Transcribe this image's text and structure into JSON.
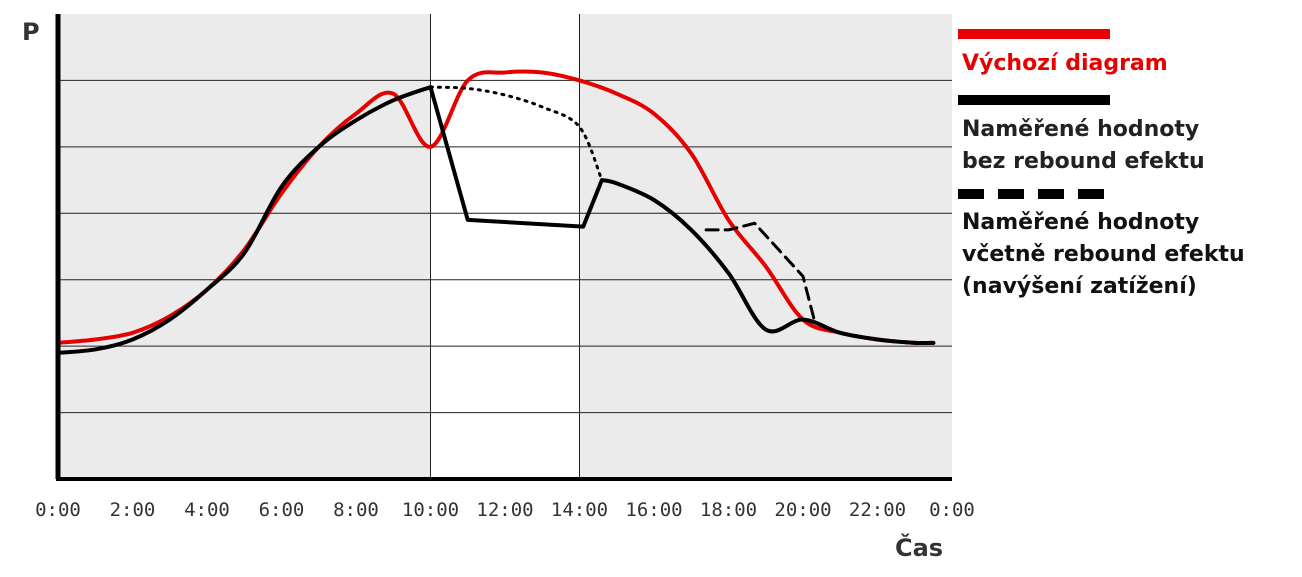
{
  "chart_data": {
    "type": "line",
    "ylabel": "P",
    "xlabel": "Čas",
    "x_ticks": [
      "0:00",
      "2:00",
      "4:00",
      "6:00",
      "8:00",
      "10:00",
      "12:00",
      "14:00",
      "16:00",
      "18:00",
      "20:00",
      "22:00",
      "0:00"
    ],
    "xlim": [
      0,
      24
    ],
    "ylim": [
      0,
      7
    ],
    "grid": true,
    "highlight_band": [
      10,
      14
    ],
    "legend_position": "right",
    "series": [
      {
        "name": "Výchozí diagram",
        "color": "#e60000",
        "style": "solid",
        "x": [
          0,
          1,
          2,
          3,
          4,
          5,
          6,
          7,
          8,
          9,
          10,
          11,
          12,
          13,
          14,
          15,
          16,
          17,
          18,
          19,
          20,
          21,
          22,
          23,
          23.5
        ],
        "y": [
          2.05,
          2.1,
          2.2,
          2.45,
          2.85,
          3.45,
          4.3,
          5.0,
          5.5,
          5.8,
          5.0,
          6.0,
          6.12,
          6.12,
          6.0,
          5.8,
          5.5,
          4.9,
          3.9,
          3.2,
          2.4,
          2.2,
          2.1,
          2.05,
          2.05
        ]
      },
      {
        "name": "Naměřené hodnoty bez rebound efektu",
        "color": "#000000",
        "style": "solid",
        "x": [
          0,
          1,
          2,
          3,
          4,
          5,
          6,
          7,
          8,
          9,
          10,
          11,
          14.1,
          14.6,
          15,
          16,
          17,
          18,
          19,
          20,
          21,
          22,
          23,
          23.5
        ],
        "y": [
          1.9,
          1.95,
          2.1,
          2.4,
          2.85,
          3.4,
          4.4,
          5.0,
          5.4,
          5.7,
          5.9,
          3.9,
          3.8,
          4.5,
          4.45,
          4.2,
          3.75,
          3.1,
          2.25,
          2.4,
          2.2,
          2.1,
          2.05,
          2.05
        ]
      },
      {
        "name": "Naměřené hodnoty včetně rebound efektu (navýšení zatížení)",
        "color": "#000000",
        "style": "dashed",
        "x": [
          17.4,
          18,
          18.7,
          20,
          20.3
        ],
        "y": [
          3.75,
          3.75,
          3.85,
          3.05,
          2.4
        ]
      },
      {
        "name": "",
        "color": "#000000",
        "style": "dotted",
        "x": [
          10,
          11,
          12,
          13,
          14,
          14.6
        ],
        "y": [
          5.9,
          5.88,
          5.78,
          5.6,
          5.3,
          4.5
        ]
      }
    ]
  }
}
